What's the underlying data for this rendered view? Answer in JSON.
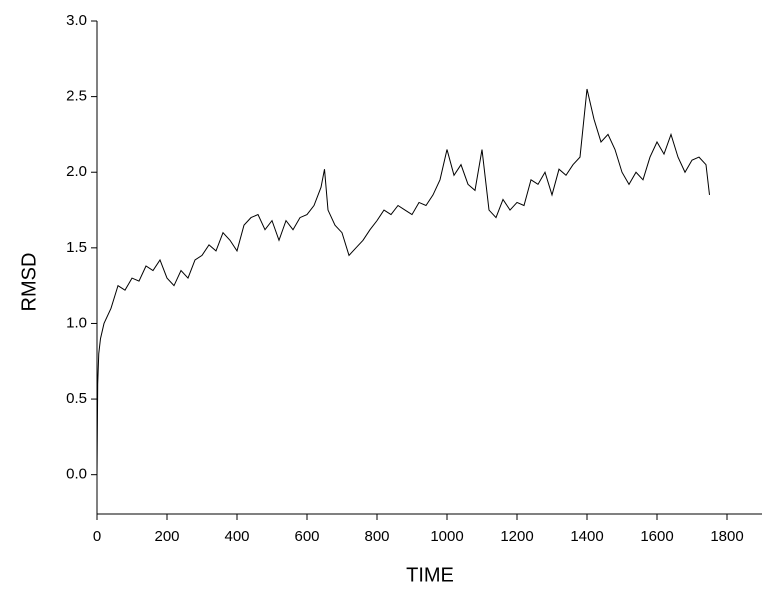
{
  "chart_data": {
    "type": "line",
    "xlabel": "TIME",
    "ylabel": "RMSD",
    "x": [
      0,
      2,
      5,
      10,
      20,
      40,
      60,
      80,
      100,
      120,
      140,
      160,
      180,
      200,
      220,
      240,
      260,
      280,
      300,
      320,
      340,
      360,
      380,
      400,
      420,
      440,
      460,
      480,
      500,
      520,
      540,
      560,
      580,
      600,
      620,
      640,
      650,
      660,
      680,
      700,
      720,
      740,
      760,
      780,
      800,
      820,
      840,
      860,
      880,
      900,
      920,
      940,
      960,
      980,
      1000,
      1020,
      1040,
      1060,
      1080,
      1100,
      1120,
      1140,
      1160,
      1180,
      1200,
      1220,
      1240,
      1260,
      1280,
      1300,
      1320,
      1340,
      1360,
      1380,
      1400,
      1410,
      1420,
      1440,
      1460,
      1480,
      1500,
      1520,
      1540,
      1560,
      1580,
      1600,
      1620,
      1640,
      1660,
      1680,
      1700,
      1720,
      1740,
      1750
    ],
    "series": [
      {
        "color": "#000000",
        "values": [
          0.0,
          0.6,
          0.8,
          0.9,
          1.0,
          1.1,
          1.25,
          1.22,
          1.3,
          1.28,
          1.38,
          1.35,
          1.42,
          1.3,
          1.25,
          1.35,
          1.3,
          1.42,
          1.45,
          1.52,
          1.48,
          1.6,
          1.55,
          1.48,
          1.65,
          1.7,
          1.72,
          1.62,
          1.68,
          1.55,
          1.68,
          1.62,
          1.7,
          1.72,
          1.78,
          1.9,
          2.02,
          1.75,
          1.65,
          1.6,
          1.45,
          1.5,
          1.55,
          1.62,
          1.68,
          1.75,
          1.72,
          1.78,
          1.75,
          1.72,
          1.8,
          1.78,
          1.85,
          1.95,
          2.15,
          1.98,
          2.05,
          1.92,
          1.88,
          2.15,
          1.75,
          1.7,
          1.82,
          1.75,
          1.8,
          1.78,
          1.95,
          1.92,
          2.0,
          1.85,
          2.02,
          1.98,
          2.05,
          2.1,
          2.55,
          2.45,
          2.35,
          2.2,
          2.25,
          2.15,
          2.0,
          1.92,
          2.0,
          1.95,
          2.1,
          2.2,
          2.12,
          2.25,
          2.1,
          2.0,
          2.08,
          2.1,
          2.05,
          1.85
        ]
      }
    ],
    "xlim": [
      0,
      1900
    ],
    "ylim": [
      -0.26,
      3.0
    ],
    "xticks": [
      0,
      200,
      400,
      600,
      800,
      1000,
      1200,
      1400,
      1600,
      1800
    ],
    "yticks": [
      {
        "value": 0,
        "label": "0.0"
      },
      {
        "value": 0.5,
        "label": "0.5"
      },
      {
        "value": 1,
        "label": "1.0"
      },
      {
        "value": 1.5,
        "label": "1.5"
      },
      {
        "value": 2,
        "label": "2.0"
      },
      {
        "value": 2.5,
        "label": "2.5"
      },
      {
        "value": 3,
        "label": "3.0"
      }
    ]
  }
}
